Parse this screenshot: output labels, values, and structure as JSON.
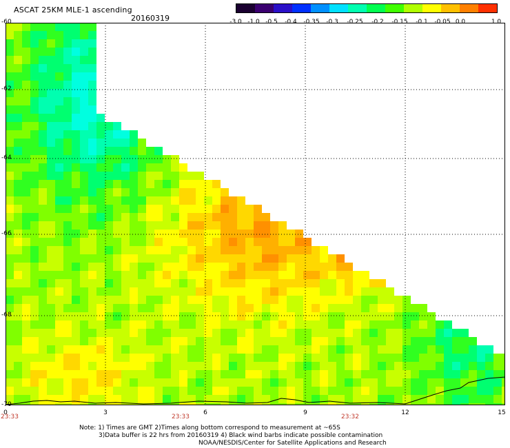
{
  "header": {
    "title": "ASCAT 25KM MLE-1 ascending",
    "date": "20160319"
  },
  "colorbar": {
    "colors": [
      "#1a0030",
      "#3a0070",
      "#2a10c8",
      "#0030ff",
      "#0090ff",
      "#00e0ff",
      "#00ffb0",
      "#00ff50",
      "#40ff00",
      "#b0ff00",
      "#ffff00",
      "#ffc000",
      "#ff8000",
      "#ff3000"
    ],
    "ticks": [
      "-3.0",
      "-1.0",
      "-0.5",
      "-0.4",
      "-0.35",
      "-0.3",
      "-0.25",
      "-0.2",
      "-0.15",
      "-0.1",
      "-0.05",
      "0.0",
      "1.0"
    ]
  },
  "map": {
    "lat_labels": [
      "-60",
      "-62",
      "-64",
      "-66",
      "-68",
      "-70"
    ],
    "lon_labels": [
      "0",
      "3",
      "6",
      "9",
      "12",
      "15"
    ],
    "times": [
      "23:33",
      "23:33",
      "23:32"
    ]
  },
  "notes": {
    "line1": "Note: 1) Times are GMT 2)Times along bottom correspond to measurement at ~65S",
    "line2": "3)Data buffer is 22 hrs from 20160319 4) Black wind barbs indicate possible contamination",
    "line3": "NOAA/NESDIS/Center for Satellite Applications and Research"
  }
}
